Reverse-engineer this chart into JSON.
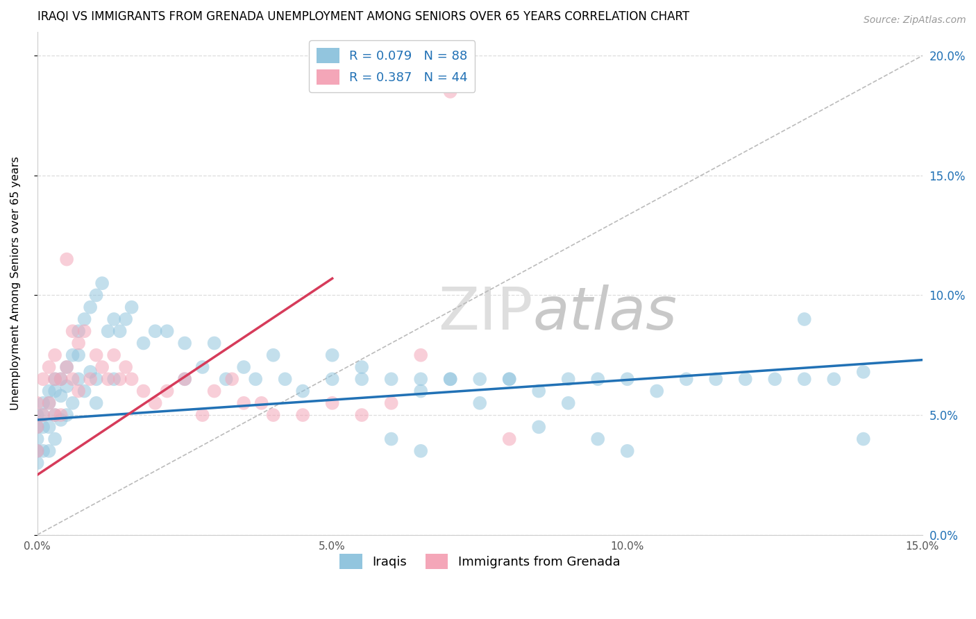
{
  "title": "IRAQI VS IMMIGRANTS FROM GRENADA UNEMPLOYMENT AMONG SENIORS OVER 65 YEARS CORRELATION CHART",
  "source": "Source: ZipAtlas.com",
  "ylabel_text": "Unemployment Among Seniors over 65 years",
  "xlim": [
    0,
    0.15
  ],
  "ylim": [
    0,
    0.21
  ],
  "xticks": [
    0.0,
    0.05,
    0.1,
    0.15
  ],
  "yticks": [
    0.0,
    0.05,
    0.1,
    0.15,
    0.2
  ],
  "xticklabels": [
    "0.0%",
    "5.0%",
    "10.0%",
    "15.0%"
  ],
  "yticklabels": [
    "0.0%",
    "5.0%",
    "10.0%",
    "15.0%",
    "20.0%"
  ],
  "legend_r1": "R = 0.079",
  "legend_n1": "N = 88",
  "legend_r2": "R = 0.387",
  "legend_n2": "N = 44",
  "blue_color": "#92c5de",
  "pink_color": "#f4a6b8",
  "blue_line_color": "#2171b5",
  "pink_line_color": "#d63b5a",
  "tick_color": "#2171b5",
  "watermark_color": "#dedede",
  "series1_label": "Iraqis",
  "series2_label": "Immigrants from Grenada",
  "blue_line_x0": 0.0,
  "blue_line_y0": 0.048,
  "blue_line_x1": 0.15,
  "blue_line_y1": 0.073,
  "pink_line_x0": 0.0,
  "pink_line_y0": 0.025,
  "pink_line_x1": 0.05,
  "pink_line_y1": 0.107,
  "blue_x": [
    0.0,
    0.0,
    0.0,
    0.0,
    0.0,
    0.001,
    0.001,
    0.001,
    0.001,
    0.002,
    0.002,
    0.002,
    0.002,
    0.003,
    0.003,
    0.003,
    0.003,
    0.004,
    0.004,
    0.004,
    0.005,
    0.005,
    0.005,
    0.006,
    0.006,
    0.007,
    0.007,
    0.007,
    0.008,
    0.008,
    0.009,
    0.009,
    0.01,
    0.01,
    0.01,
    0.011,
    0.012,
    0.013,
    0.013,
    0.014,
    0.015,
    0.016,
    0.018,
    0.02,
    0.022,
    0.025,
    0.025,
    0.028,
    0.03,
    0.032,
    0.035,
    0.037,
    0.04,
    0.042,
    0.045,
    0.05,
    0.05,
    0.055,
    0.06,
    0.065,
    0.065,
    0.07,
    0.075,
    0.08,
    0.085,
    0.09,
    0.095,
    0.1,
    0.105,
    0.11,
    0.115,
    0.12,
    0.125,
    0.13,
    0.135,
    0.14,
    0.14,
    0.13,
    0.09,
    0.095,
    0.1,
    0.07,
    0.075,
    0.08,
    0.085,
    0.055,
    0.06,
    0.065
  ],
  "blue_y": [
    0.05,
    0.045,
    0.04,
    0.035,
    0.03,
    0.055,
    0.05,
    0.045,
    0.035,
    0.06,
    0.055,
    0.045,
    0.035,
    0.065,
    0.06,
    0.05,
    0.04,
    0.065,
    0.058,
    0.048,
    0.07,
    0.062,
    0.05,
    0.075,
    0.055,
    0.085,
    0.075,
    0.065,
    0.09,
    0.06,
    0.095,
    0.068,
    0.1,
    0.065,
    0.055,
    0.105,
    0.085,
    0.09,
    0.065,
    0.085,
    0.09,
    0.095,
    0.08,
    0.085,
    0.085,
    0.08,
    0.065,
    0.07,
    0.08,
    0.065,
    0.07,
    0.065,
    0.075,
    0.065,
    0.06,
    0.075,
    0.065,
    0.07,
    0.065,
    0.065,
    0.06,
    0.065,
    0.065,
    0.065,
    0.06,
    0.065,
    0.065,
    0.065,
    0.06,
    0.065,
    0.065,
    0.065,
    0.065,
    0.065,
    0.065,
    0.068,
    0.04,
    0.09,
    0.055,
    0.04,
    0.035,
    0.065,
    0.055,
    0.065,
    0.045,
    0.065,
    0.04,
    0.035
  ],
  "pink_x": [
    0.0,
    0.0,
    0.0,
    0.001,
    0.001,
    0.002,
    0.002,
    0.003,
    0.003,
    0.003,
    0.004,
    0.004,
    0.005,
    0.005,
    0.006,
    0.006,
    0.007,
    0.007,
    0.008,
    0.009,
    0.01,
    0.011,
    0.012,
    0.013,
    0.014,
    0.015,
    0.016,
    0.018,
    0.02,
    0.022,
    0.025,
    0.028,
    0.03,
    0.033,
    0.035,
    0.038,
    0.04,
    0.045,
    0.05,
    0.055,
    0.06,
    0.065,
    0.07,
    0.08
  ],
  "pink_y": [
    0.055,
    0.045,
    0.035,
    0.065,
    0.05,
    0.07,
    0.055,
    0.075,
    0.065,
    0.05,
    0.065,
    0.05,
    0.115,
    0.07,
    0.085,
    0.065,
    0.08,
    0.06,
    0.085,
    0.065,
    0.075,
    0.07,
    0.065,
    0.075,
    0.065,
    0.07,
    0.065,
    0.06,
    0.055,
    0.06,
    0.065,
    0.05,
    0.06,
    0.065,
    0.055,
    0.055,
    0.05,
    0.05,
    0.055,
    0.05,
    0.055,
    0.075,
    0.185,
    0.04
  ]
}
